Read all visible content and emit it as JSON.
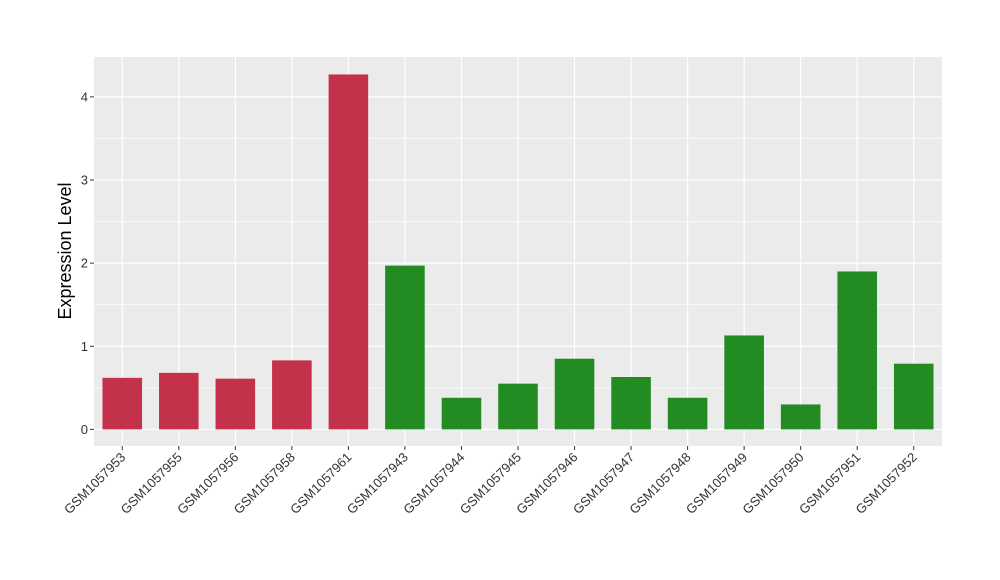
{
  "chart_data": {
    "type": "bar",
    "title": "",
    "xlabel": "",
    "ylabel": "Expression Level",
    "categories": [
      "GSM1057953",
      "GSM1057955",
      "GSM1057956",
      "GSM1057958",
      "GSM1057961",
      "GSM1057943",
      "GSM1057944",
      "GSM1057945",
      "GSM1057946",
      "GSM1057947",
      "GSM1057948",
      "GSM1057949",
      "GSM1057950",
      "GSM1057951",
      "GSM1057952"
    ],
    "values": [
      0.62,
      0.68,
      0.61,
      0.83,
      4.27,
      1.97,
      0.38,
      0.55,
      0.85,
      0.63,
      0.38,
      1.13,
      0.3,
      1.9,
      0.79
    ],
    "bar_colors": [
      "#c4314b",
      "#c4314b",
      "#c4314b",
      "#c4314b",
      "#c4314b",
      "#228b22",
      "#228b22",
      "#228b22",
      "#228b22",
      "#228b22",
      "#228b22",
      "#228b22",
      "#228b22",
      "#228b22",
      "#228b22"
    ],
    "ylim": [
      -0.2,
      4.48
    ],
    "y_ticks": [
      0,
      1,
      2,
      3,
      4
    ],
    "grid": true,
    "panel_background": "#ebebeb",
    "grid_color": "#ffffff"
  }
}
